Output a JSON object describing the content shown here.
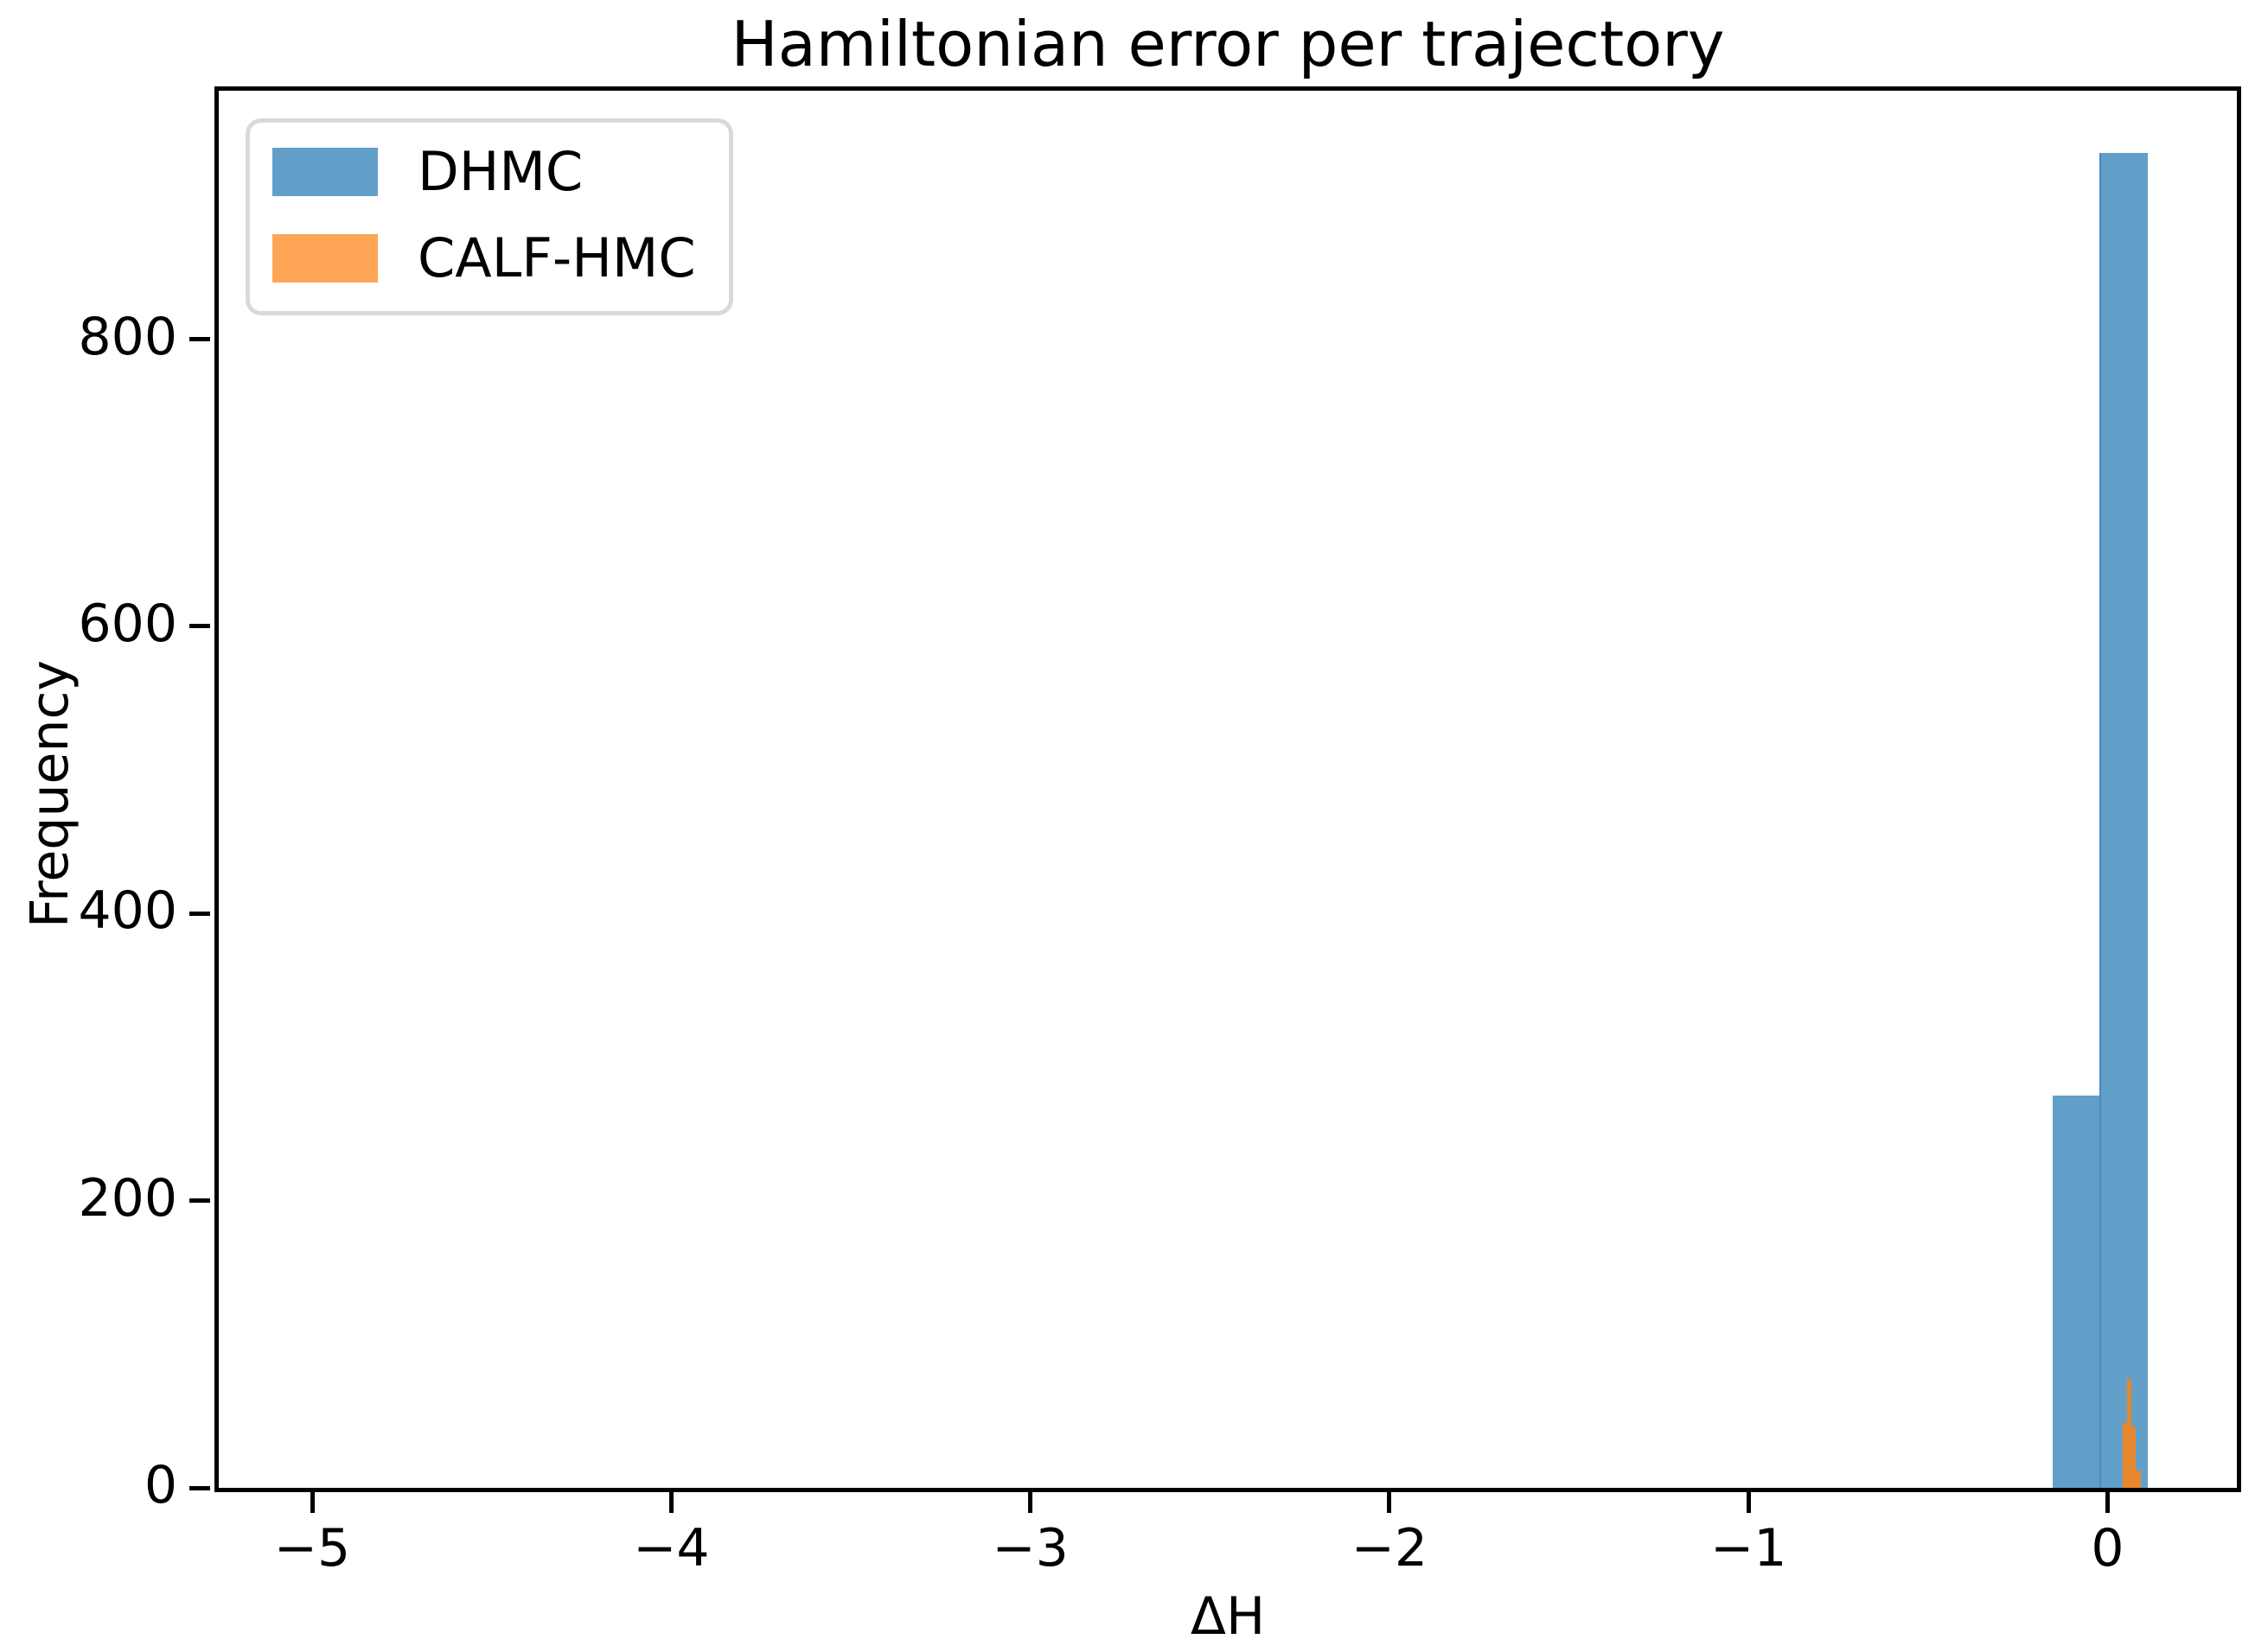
{
  "figure": {
    "title": "Hamiltonian error per trajectory"
  },
  "axes": {
    "xlabel": "ΔH",
    "ylabel": "Frequency",
    "xticks": [
      {
        "value": -5,
        "label": "−5"
      },
      {
        "value": -4,
        "label": "−4"
      },
      {
        "value": -3,
        "label": "−3"
      },
      {
        "value": -2,
        "label": "−2"
      },
      {
        "value": -1,
        "label": "−1"
      },
      {
        "value": 0,
        "label": "0"
      }
    ],
    "yticks": [
      {
        "value": 0,
        "label": "0"
      },
      {
        "value": 200,
        "label": "200"
      },
      {
        "value": 400,
        "label": "400"
      },
      {
        "value": 600,
        "label": "600"
      },
      {
        "value": 800,
        "label": "800"
      }
    ]
  },
  "legend": {
    "entries": [
      {
        "label": "DHMC",
        "swatch_color": "#62A0CA"
      },
      {
        "label": "CALF-HMC",
        "swatch_color": "#FFA556"
      }
    ]
  },
  "chart_data": {
    "type": "bar",
    "subtype": "histogram-overlay",
    "title": "Hamiltonian error per trajectory",
    "xlabel": "ΔH",
    "ylabel": "Frequency",
    "xlim": [
      -5.26,
      0.36
    ],
    "ylim": [
      0,
      973
    ],
    "xticks": [
      -5,
      -4,
      -3,
      -2,
      -1,
      0
    ],
    "yticks": [
      0,
      200,
      400,
      600,
      800
    ],
    "grid": false,
    "legend_position": "upper left",
    "series": [
      {
        "name": "DHMC",
        "color": "#62A0CA",
        "bins": [
          {
            "x0": -0.152,
            "x1": -0.024,
            "count": 273
          },
          {
            "x0": -0.024,
            "x1": 0.106,
            "count": 930
          }
        ]
      },
      {
        "name": "CALF-HMC",
        "color": "#E8862E",
        "bins": [
          {
            "x0": 0.041,
            "x1": 0.054,
            "count": 45
          },
          {
            "x0": 0.054,
            "x1": 0.067,
            "count": 76
          },
          {
            "x0": 0.067,
            "x1": 0.079,
            "count": 43
          },
          {
            "x0": 0.079,
            "x1": 0.094,
            "count": 12
          }
        ]
      }
    ]
  }
}
